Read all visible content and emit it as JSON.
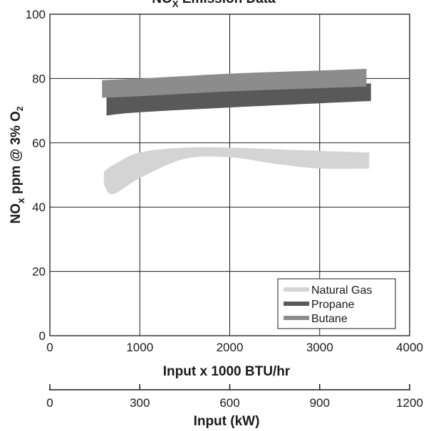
{
  "chart_data": {
    "type": "area",
    "title": "NOx Emission Data",
    "title_main": "NO",
    "title_sub": "X",
    "title_tail": " Emission Data",
    "xlabel": "Input x 1000 BTU/hr",
    "ylabel": "NOx ppm @ 3% O2",
    "ylabel_parts": {
      "a": "NO",
      "b": "x",
      "c": " ppm @ 3% O",
      "d": "2"
    },
    "xlim": [
      0,
      4000
    ],
    "ylim": [
      0,
      100
    ],
    "x_ticks": [
      "0",
      "1000",
      "2000",
      "3000",
      "4000"
    ],
    "y_ticks": [
      "0",
      "20",
      "40",
      "60",
      "80",
      "100"
    ],
    "grid": true,
    "legend_position": "bottom-right",
    "series": [
      {
        "name": "Natural Gas",
        "color": "#d4d4d4",
        "x": [
          600,
          700,
          1000,
          1500,
          2000,
          2500,
          3000,
          3550
        ],
        "upper": [
          51,
          53,
          57,
          58.5,
          58.5,
          58,
          57.5,
          57
        ],
        "lower": [
          47,
          44,
          49,
          55,
          55.5,
          53.5,
          52,
          52
        ]
      },
      {
        "name": "Propane",
        "color": "#595959",
        "x": [
          630,
          1000,
          2000,
          3000,
          3570
        ],
        "upper": [
          75,
          75.5,
          77,
          78,
          78.5
        ],
        "lower": [
          68.5,
          69.5,
          71,
          72.3,
          73
        ]
      },
      {
        "name": "Butane",
        "color": "#8c8c8c",
        "x": [
          580,
          1000,
          2000,
          3000,
          3520
        ],
        "upper": [
          79.5,
          80,
          81.5,
          82.5,
          83
        ],
        "lower": [
          74,
          74.5,
          76,
          77,
          77.5
        ]
      }
    ],
    "secondary_axis": {
      "label": "Input (kW)",
      "range": [
        0,
        1200
      ],
      "ticks": [
        "0",
        "300",
        "600",
        "900",
        "1200"
      ]
    }
  }
}
